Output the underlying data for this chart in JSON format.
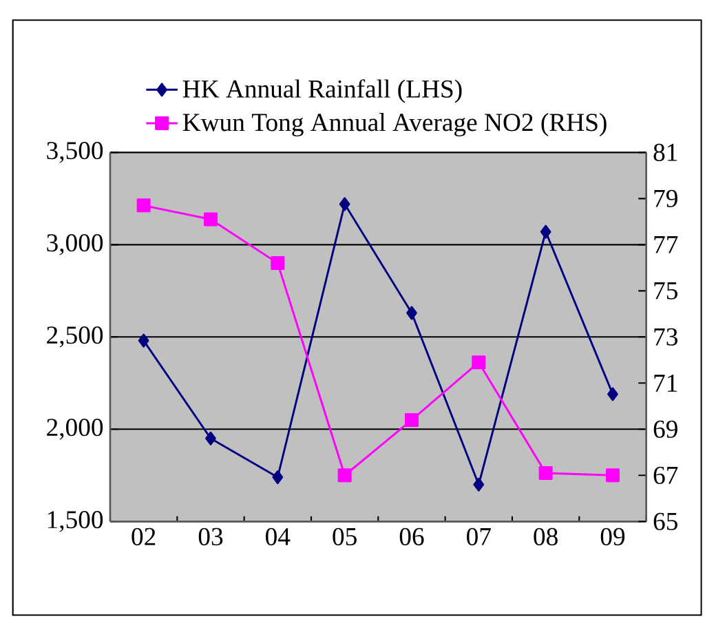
{
  "chart_data": {
    "type": "line",
    "categories": [
      "02",
      "03",
      "04",
      "05",
      "06",
      "07",
      "08",
      "09"
    ],
    "series": [
      {
        "name": "HK Annual Rainfall (LHS)",
        "color": "#000080",
        "marker": "diamond",
        "values": [
          2480,
          1950,
          1740,
          3220,
          2630,
          1700,
          3070,
          2190
        ]
      },
      {
        "name": "Kwun Tong Annual Average NO2 (RHS)",
        "color": "#ff00ff",
        "marker": "square",
        "axis": "y2",
        "values": [
          78.7,
          78.1,
          76.2,
          67.0,
          69.4,
          71.9,
          67.1,
          67.0
        ]
      }
    ],
    "ylim": [
      1500,
      3500
    ],
    "yticks": [
      {
        "value": 1500,
        "label": "1,500"
      },
      {
        "value": 2000,
        "label": "2,000"
      },
      {
        "value": 2500,
        "label": "2,500"
      },
      {
        "value": 3000,
        "label": "3,000"
      },
      {
        "value": 3500,
        "label": "3,500"
      }
    ],
    "y2lim": [
      65,
      81
    ],
    "y2ticks": [
      65,
      67,
      69,
      71,
      73,
      75,
      77,
      79,
      81
    ],
    "grid": "y",
    "legend": "top",
    "line_style": "solid"
  }
}
